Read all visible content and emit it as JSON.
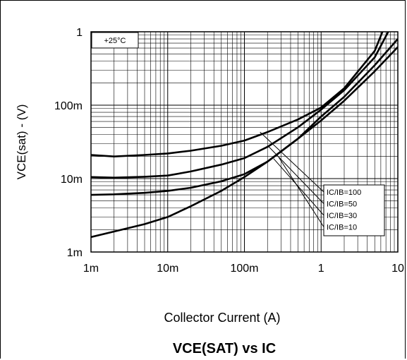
{
  "chart_data": {
    "type": "line",
    "title": "VCE(SAT) vs IC",
    "xlabel": "Collector Current (A)",
    "ylabel": "VCE(sat) - (V)",
    "x_scale": "log",
    "y_scale": "log",
    "xlim": [
      0.001,
      10
    ],
    "ylim": [
      0.001,
      1
    ],
    "x_ticks": [
      {
        "value": 0.001,
        "label": "1m"
      },
      {
        "value": 0.01,
        "label": "10m"
      },
      {
        "value": 0.1,
        "label": "100m"
      },
      {
        "value": 1,
        "label": "1"
      },
      {
        "value": 10,
        "label": "10"
      }
    ],
    "y_ticks": [
      {
        "value": 0.001,
        "label": "1m"
      },
      {
        "value": 0.01,
        "label": "10m"
      },
      {
        "value": 0.1,
        "label": "100m"
      },
      {
        "value": 1,
        "label": "1"
      }
    ],
    "grid": true,
    "annotation": "+25°C",
    "series": [
      {
        "name": "IC/IB=100",
        "x": [
          0.001,
          0.002,
          0.005,
          0.01,
          0.02,
          0.05,
          0.1,
          0.2,
          0.5,
          1,
          2,
          5,
          6.3
        ],
        "y": [
          0.021,
          0.02,
          0.021,
          0.022,
          0.024,
          0.028,
          0.033,
          0.043,
          0.064,
          0.093,
          0.17,
          0.55,
          1.0
        ]
      },
      {
        "name": "IC/IB=50",
        "x": [
          0.001,
          0.002,
          0.005,
          0.01,
          0.02,
          0.05,
          0.1,
          0.2,
          0.5,
          1,
          2,
          5,
          7.5
        ],
        "y": [
          0.0105,
          0.0103,
          0.0106,
          0.011,
          0.0125,
          0.0155,
          0.019,
          0.027,
          0.05,
          0.087,
          0.16,
          0.45,
          1.0
        ]
      },
      {
        "name": "IC/IB=30",
        "x": [
          0.001,
          0.002,
          0.005,
          0.01,
          0.02,
          0.05,
          0.1,
          0.2,
          0.5,
          1,
          2,
          5,
          10
        ],
        "y": [
          0.006,
          0.0061,
          0.0064,
          0.0068,
          0.0075,
          0.0092,
          0.0115,
          0.017,
          0.035,
          0.07,
          0.13,
          0.35,
          0.8
        ]
      },
      {
        "name": "IC/IB=10",
        "x": [
          0.001,
          0.002,
          0.005,
          0.01,
          0.02,
          0.05,
          0.1,
          0.2,
          0.5,
          1,
          2,
          5,
          10
        ],
        "y": [
          0.0016,
          0.0019,
          0.0024,
          0.003,
          0.0042,
          0.0068,
          0.0105,
          0.017,
          0.035,
          0.062,
          0.115,
          0.29,
          0.62
        ]
      }
    ],
    "colors": {
      "line": "#000000",
      "grid": "#000000",
      "background": "#ffffff"
    }
  }
}
